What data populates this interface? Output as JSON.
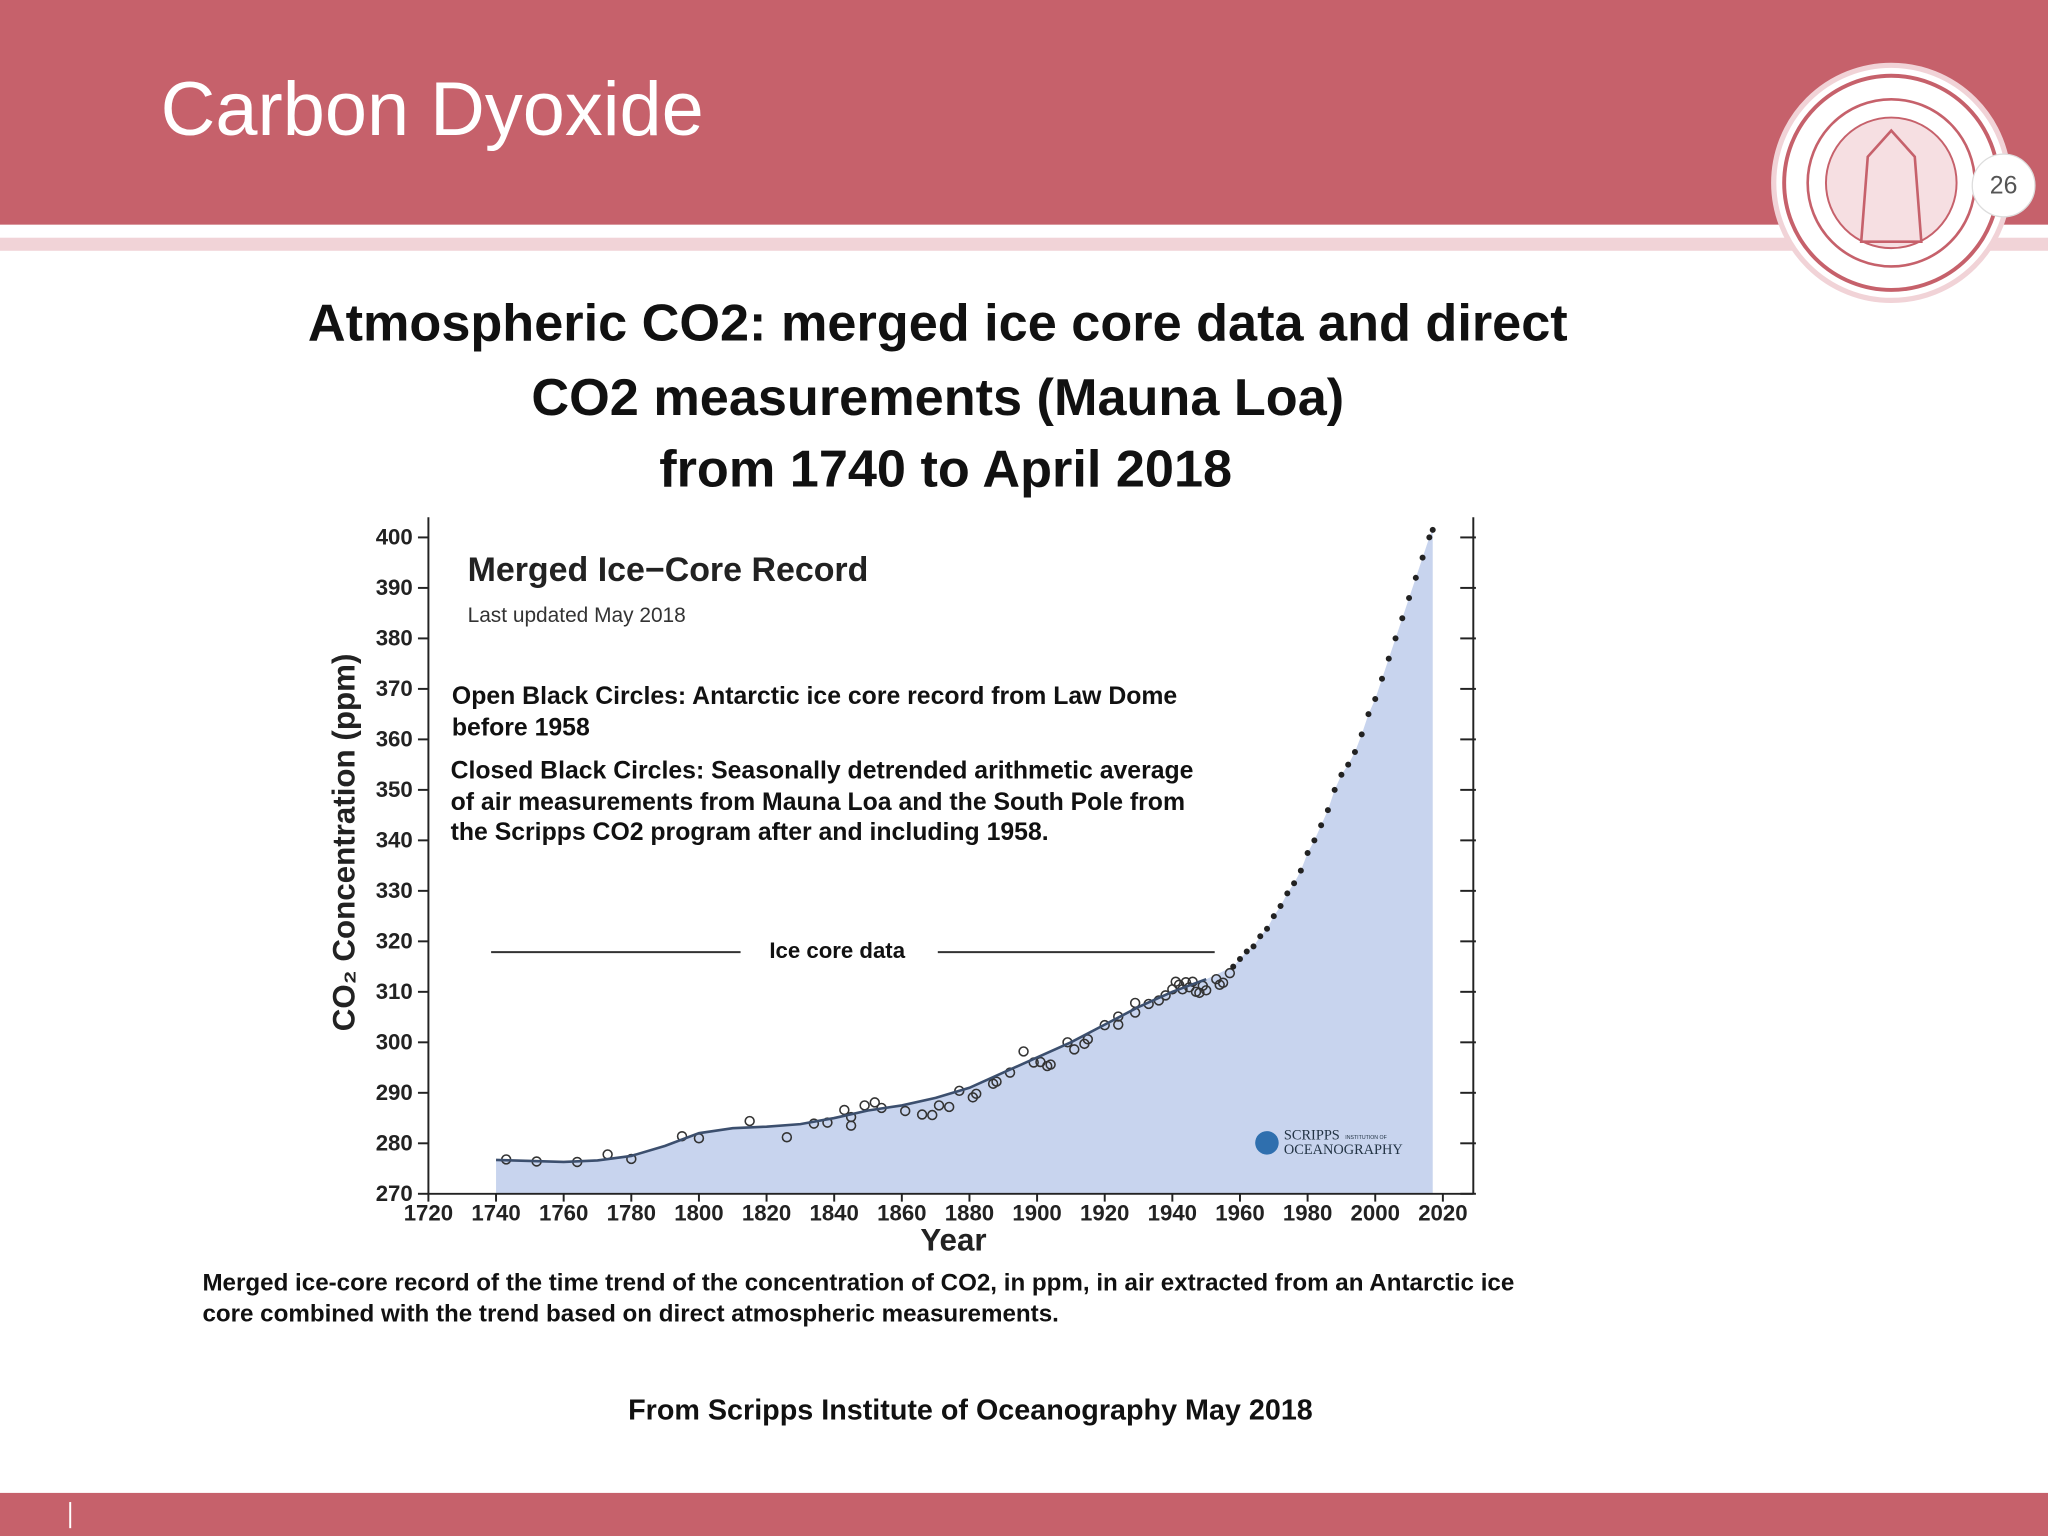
{
  "slide": {
    "title": "Carbon Dyoxide",
    "page_number": "26",
    "heading": [
      "Atmospheric CO2: merged ice core data and direct",
      "CO2 measurements (Mauna Loa)",
      "from 1740 to April 2018"
    ],
    "caption": [
      "Merged ice-core record of the time trend of the concentration of CO2, in ppm, in air extracted from an Antarctic ice",
      "core combined with the trend based on direct atmospheric measurements."
    ],
    "source": "From  Scripps Institute of Oceanography May 2018"
  },
  "chart_data": {
    "type": "scatter",
    "title": "Merged Ice−Core Record",
    "subtitle": "Last updated May 2018",
    "x_label": "Year",
    "y_label": "CO₂ Concentration (ppm)",
    "annotations": [
      [
        "Open Black Circles: Antarctic ice core record from Law Dome",
        "before 1958"
      ],
      [
        "Closed Black Circles: Seasonally detrended arithmetic average",
        "of air measurements from Mauna Loa and the South Pole from",
        "the Scripps CO2 program after and including 1958."
      ]
    ],
    "span_label": "Ice core data",
    "logo": {
      "name": "SCRIPPS",
      "sub": "INSTITUTION OF",
      "org": "OCEANOGRAPHY"
    },
    "xlim": [
      1720,
      2029
    ],
    "ylim": [
      270,
      404
    ],
    "xticks": [
      1720,
      1740,
      1760,
      1780,
      1800,
      1820,
      1840,
      1860,
      1880,
      1900,
      1920,
      1940,
      1960,
      1980,
      2000,
      2020
    ],
    "yticks": [
      270,
      280,
      290,
      300,
      310,
      320,
      330,
      340,
      350,
      360,
      370,
      380,
      390,
      400
    ],
    "area_color": "#c8d4ee",
    "series": [
      {
        "marker": "open",
        "color": "#333333",
        "x": [
          1743,
          1752,
          1764,
          1773,
          1780,
          1795,
          1800,
          1815,
          1826,
          1834,
          1838,
          1843,
          1845,
          1845,
          1849,
          1852,
          1854,
          1861,
          1866,
          1869,
          1871,
          1874,
          1877,
          1881,
          1882,
          1887,
          1888,
          1892,
          1896,
          1899,
          1901,
          1903,
          1904,
          1909,
          1911,
          1914,
          1915,
          1920,
          1924,
          1924,
          1929,
          1929,
          1933,
          1936,
          1938,
          1940,
          1941,
          1942,
          1943,
          1944,
          1945,
          1946,
          1947,
          1948,
          1949,
          1950,
          1953,
          1954,
          1955,
          1957
        ],
        "values": [
          276.8,
          276.4,
          276.3,
          277.8,
          276.9,
          281.4,
          281.0,
          284.4,
          281.2,
          283.9,
          284.1,
          286.6,
          283.5,
          285.2,
          287.5,
          288.1,
          287.0,
          286.4,
          285.7,
          285.6,
          287.5,
          287.2,
          290.4,
          289.1,
          289.8,
          291.8,
          292.2,
          294.0,
          298.2,
          296.0,
          296.1,
          295.3,
          295.6,
          300.0,
          298.6,
          299.7,
          300.6,
          303.4,
          303.5,
          305.1,
          305.9,
          307.8,
          307.6,
          308.3,
          309.3,
          310.5,
          312.0,
          311.4,
          310.5,
          311.9,
          310.9,
          312.0,
          310.0,
          309.8,
          311.2,
          310.3,
          312.5,
          311.4,
          311.8,
          313.7
        ]
      },
      {
        "marker": "closed",
        "color": "#222222",
        "x": [
          1958,
          1960,
          1962,
          1964,
          1966,
          1968,
          1970,
          1972,
          1974,
          1976,
          1978,
          1980,
          1982,
          1984,
          1986,
          1988,
          1990,
          1992,
          1994,
          1996,
          1998,
          2000,
          2002,
          2004,
          2006,
          2008,
          2010,
          2012,
          2014,
          2016,
          2017
        ],
        "values": [
          315.0,
          316.5,
          318.0,
          319.0,
          321.0,
          322.5,
          325.0,
          327.0,
          329.5,
          331.5,
          334.0,
          337.5,
          340.0,
          343.0,
          346.0,
          350.0,
          353.0,
          355.0,
          357.5,
          361.0,
          365.0,
          368.0,
          372.0,
          376.0,
          380.0,
          384.0,
          388.0,
          392.0,
          396.0,
          400.0,
          401.5
        ]
      },
      {
        "marker": "line",
        "color": "#3c4f6e",
        "x": [
          1740,
          1750,
          1760,
          1770,
          1780,
          1790,
          1800,
          1810,
          1820,
          1830,
          1840,
          1850,
          1860,
          1870,
          1880,
          1890,
          1900,
          1910,
          1920,
          1930,
          1940,
          1950
        ],
        "values": [
          276.7,
          276.5,
          276.3,
          276.6,
          277.5,
          279.5,
          282.0,
          283.0,
          283.3,
          283.8,
          285.0,
          286.5,
          287.5,
          289.0,
          291.0,
          294.0,
          297.0,
          300.0,
          303.5,
          307.0,
          310.0,
          312.5
        ]
      }
    ]
  }
}
